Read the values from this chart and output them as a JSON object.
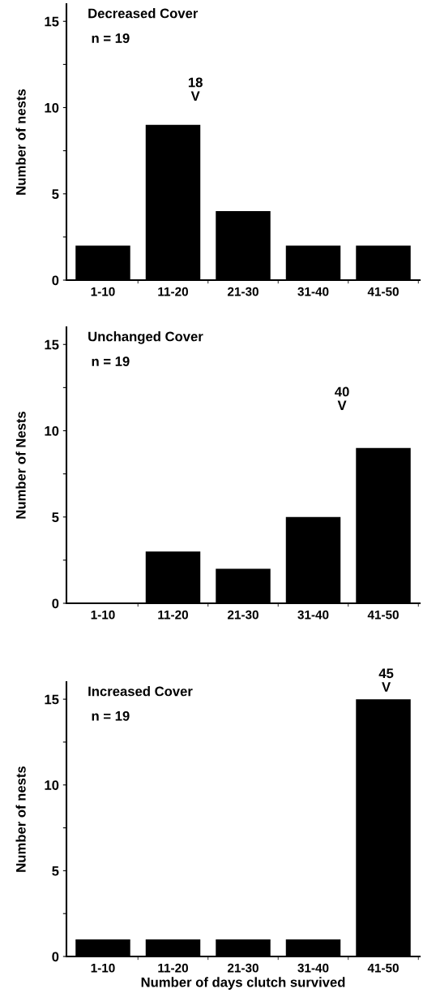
{
  "chart_data": [
    {
      "type": "bar",
      "title": "Decreased Cover",
      "subtitle": "n = 19",
      "ylabel": "Number of nests",
      "categories": [
        "1-10",
        "11-20",
        "21-30",
        "31-40",
        "41-50"
      ],
      "values": [
        2,
        9,
        4,
        2,
        2
      ],
      "color": "#000000",
      "ylim": [
        0,
        16
      ],
      "yticks": [
        0,
        {
          "value": 2.5,
          "label": null
        },
        5,
        {
          "value": 7.5,
          "label": null
        },
        10,
        {
          "value": 12.5,
          "label": null
        },
        15
      ],
      "annotations": [
        "18\nV"
      ],
      "grid": false,
      "legend": false
    },
    {
      "type": "bar",
      "title": "Unchanged Cover",
      "subtitle": "n = 19",
      "ylabel": "Number of Nests",
      "categories": [
        "1-10",
        "11-20",
        "21-30",
        "31-40",
        "41-50"
      ],
      "values": [
        0,
        3,
        2,
        5,
        9
      ],
      "color": "#000000",
      "ylim": [
        0,
        16
      ],
      "yticks": [
        0,
        {
          "value": 2.5,
          "label": null
        },
        5,
        {
          "value": 7.5,
          "label": null
        },
        10,
        {
          "value": 12.5,
          "label": null
        },
        15
      ],
      "annotations": [
        "40\nV"
      ],
      "grid": false,
      "legend": false
    },
    {
      "type": "bar",
      "title": "Increased Cover",
      "subtitle": "n = 19",
      "ylabel": "Number of nests",
      "xlabel": "Number of days clutch survived",
      "categories": [
        "1-10",
        "11-20",
        "21-30",
        "31-40",
        "41-50"
      ],
      "values": [
        1,
        1,
        1,
        1,
        15
      ],
      "color": "#000000",
      "ylim": [
        0,
        16
      ],
      "yticks": [
        0,
        {
          "value": 2.5,
          "label": null
        },
        5,
        {
          "value": 7.5,
          "label": null
        },
        10,
        {
          "value": 12.5,
          "label": null
        },
        15
      ],
      "annotations": [
        "45\nV"
      ],
      "grid": false,
      "legend": false
    }
  ]
}
